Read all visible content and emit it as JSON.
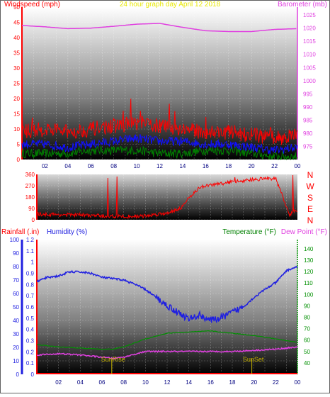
{
  "title": "24 hour graph day  April 12 2018",
  "colors": {
    "wind": "#ff0000",
    "baro": "#e040e0",
    "gust_blue": "#1010ff",
    "avg_green": "#008000",
    "direction": "#ff0000",
    "rain": "#ff0000",
    "humidity": "#2020e0",
    "temperature": "#009000",
    "dewpoint": "#e040e0",
    "sun_marker": "#c8b400"
  },
  "x_ticks": [
    "02",
    "04",
    "06",
    "08",
    "10",
    "12",
    "14",
    "16",
    "18",
    "20",
    "22",
    "00"
  ],
  "chart_data": [
    {
      "type": "line",
      "title": "24 hour graph day  April 12 2018",
      "ylabel": "Windspeed (mph)",
      "y2label": "Barometer (mb)",
      "ylim": [
        0,
        50
      ],
      "y2lim": [
        970,
        1028
      ],
      "y_ticks": [
        "0",
        "5",
        "10",
        "15",
        "20",
        "25",
        "30",
        "35",
        "40",
        "45",
        "50"
      ],
      "y2_ticks": [
        "975",
        "980",
        "985",
        "990",
        "995",
        "1000",
        "1005",
        "1010",
        "1015",
        "1020",
        "1025"
      ],
      "series": [
        {
          "name": "Barometer (mb)",
          "x": [
            0,
            2,
            4,
            6,
            8,
            10,
            12,
            14,
            16,
            18,
            20,
            22,
            24
          ],
          "values": [
            1021,
            1020.5,
            1019.8,
            1020,
            1020.7,
            1021.5,
            1021.8,
            1020.3,
            1019,
            1018.7,
            1018.7,
            1019.5,
            1019.8
          ]
        },
        {
          "name": "Wind Speed",
          "x": [
            0,
            2,
            4,
            6,
            8,
            10,
            12,
            14,
            16,
            18,
            20,
            22,
            24
          ],
          "values": [
            9,
            10,
            9,
            10,
            11,
            12,
            11,
            10,
            9,
            9,
            8,
            7,
            8
          ]
        },
        {
          "name": "Wind Average",
          "x": [
            0,
            2,
            4,
            6,
            8,
            10,
            12,
            14,
            16,
            18,
            20,
            22,
            24
          ],
          "values": [
            5,
            5,
            4,
            5,
            6,
            7,
            6,
            6,
            5,
            5,
            4,
            3,
            4
          ]
        },
        {
          "name": "Wind Low",
          "x": [
            0,
            2,
            4,
            6,
            8,
            10,
            12,
            14,
            16,
            18,
            20,
            22,
            24
          ],
          "values": [
            2,
            2,
            2,
            3,
            3,
            3,
            2,
            2,
            3,
            3,
            2,
            1,
            1
          ]
        }
      ]
    },
    {
      "type": "line",
      "ylabel": "",
      "ylim": [
        0,
        360
      ],
      "y_ticks": [
        "0",
        "90",
        "180",
        "270",
        "360"
      ],
      "right_labels": [
        "N",
        "W",
        "S",
        "E",
        "N"
      ],
      "series": [
        {
          "name": "Wind Direction",
          "x": [
            0,
            2,
            4,
            6,
            8,
            10,
            12,
            13,
            13.5,
            14,
            14.5,
            15,
            16,
            18,
            20,
            22,
            23.3,
            23.5,
            24
          ],
          "values": [
            45,
            40,
            38,
            30,
            25,
            30,
            55,
            85,
            110,
            180,
            215,
            255,
            275,
            300,
            320,
            330,
            30,
            60,
            75
          ]
        }
      ]
    },
    {
      "type": "line",
      "ylabel": "Rainfall (.in)",
      "y2label": "Humidity (%)",
      "y3label": "Temperature (°F)",
      "y4label": "Dew Point (°F)",
      "rain_ylim": [
        0,
        1.2
      ],
      "rain_ticks": [
        "0",
        "0.1",
        "0.2",
        "0.3",
        "0.4",
        "0.5",
        "0.6",
        "0.7",
        "0.8",
        "0.9",
        "1",
        "1.1",
        "1.2"
      ],
      "humidity_ylim": [
        0,
        100
      ],
      "humidity_ticks": [
        "0",
        "10",
        "20",
        "30",
        "40",
        "50",
        "60",
        "70",
        "80",
        "90",
        "100"
      ],
      "temp_ylim": [
        30,
        148
      ],
      "temp_ticks": [
        "40",
        "50",
        "60",
        "70",
        "80",
        "90",
        "100",
        "110",
        "120",
        "130",
        "140"
      ],
      "markers": [
        {
          "label": "SunRise",
          "x": 6.9
        },
        {
          "label": "SunSet",
          "x": 19.8
        }
      ],
      "series": [
        {
          "name": "Humidity (%)",
          "x": [
            0,
            1,
            2,
            3,
            4,
            5,
            6,
            7,
            8,
            9,
            10,
            11,
            12,
            13,
            14,
            15,
            16,
            17,
            18,
            19,
            20,
            21,
            22,
            23,
            24
          ],
          "values": [
            69,
            72,
            73,
            76,
            76,
            75,
            72,
            71,
            70,
            67,
            63,
            57,
            51,
            46,
            41,
            44,
            40,
            42,
            46,
            50,
            57,
            63,
            68,
            77,
            80
          ]
        },
        {
          "name": "Temperature (°F)",
          "x": [
            0,
            2,
            4,
            6,
            7,
            8,
            10,
            12,
            14,
            16,
            18,
            20,
            22,
            24
          ],
          "values": [
            56,
            54,
            53,
            52,
            52,
            54,
            61,
            66,
            67,
            68,
            66,
            64,
            61,
            58
          ]
        },
        {
          "name": "Dew Point (°F)",
          "x": [
            0,
            2,
            4,
            6,
            7,
            8,
            10,
            12,
            14,
            16,
            18,
            20,
            22,
            24
          ],
          "values": [
            47,
            48,
            47,
            45,
            44,
            45,
            50,
            50,
            50,
            50,
            50,
            51,
            52,
            54
          ]
        },
        {
          "name": "Rainfall (.in)",
          "x": [
            0,
            24
          ],
          "values": [
            0,
            0
          ]
        }
      ]
    }
  ]
}
